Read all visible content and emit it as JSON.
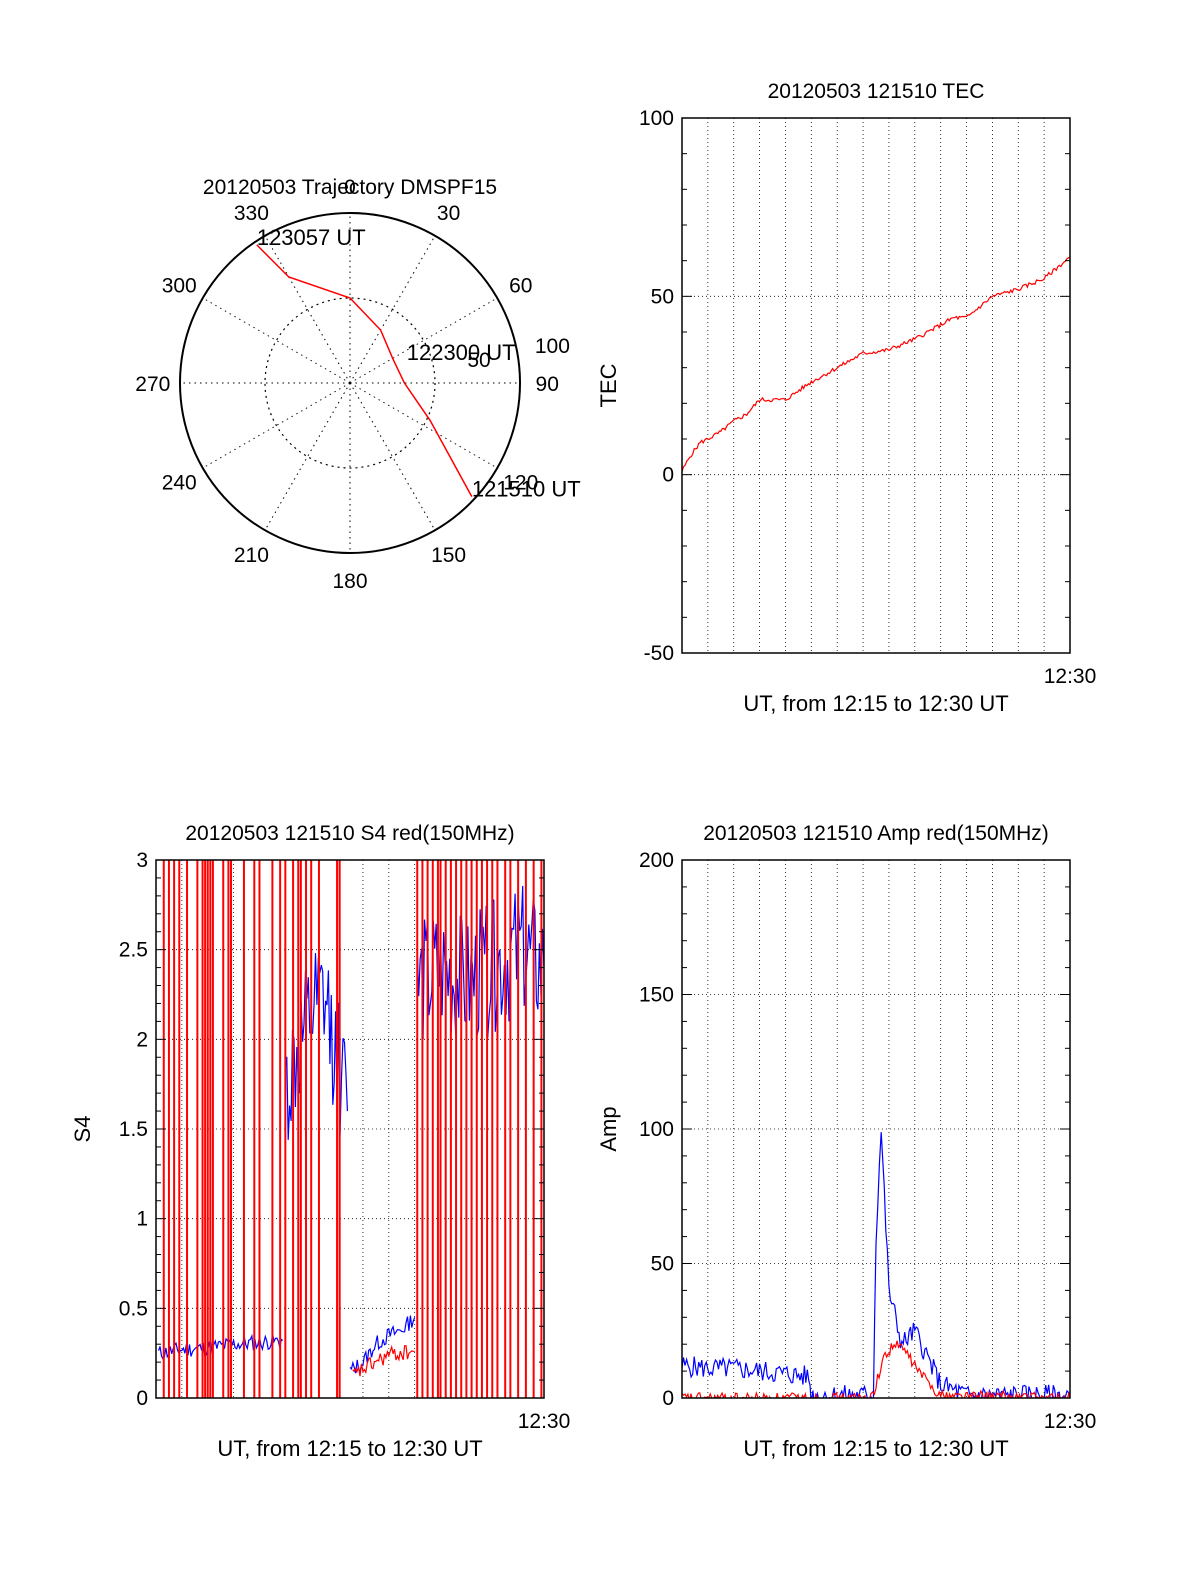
{
  "chart_data": [
    {
      "type": "polar",
      "title": "20120503 Trajectory DMSPF15",
      "azimuth_labels": [
        "0",
        "30",
        "60",
        "90",
        "120",
        "150",
        "180",
        "210",
        "240",
        "270",
        "300",
        "330"
      ],
      "radius_label": "50",
      "radius_outer_label": "100",
      "series": [
        {
          "color": "#ff0000",
          "points": [
            {
              "azimuth": 326,
              "radius": 98
            },
            {
              "azimuth": 330,
              "radius": 72
            },
            {
              "azimuth": 0,
              "radius": 50
            },
            {
              "azimuth": 30,
              "radius": 36
            },
            {
              "azimuth": 60,
              "radius": 29
            },
            {
              "azimuth": 90,
              "radius": 32
            },
            {
              "azimuth": 115,
              "radius": 52
            },
            {
              "azimuth": 133,
              "radius": 98
            }
          ]
        }
      ],
      "annotations": [
        {
          "text": "123057 UT",
          "azimuth": 326,
          "radius": 98
        },
        {
          "text": "122300 UT",
          "azimuth": 68,
          "radius": 36
        },
        {
          "text": "121510 UT",
          "azimuth": 133,
          "radius": 98
        }
      ]
    },
    {
      "type": "line",
      "title": "20120503 121510 TEC",
      "xlabel": "UT, from 12:15 to 12:30 UT",
      "ylabel": "TEC",
      "xlim": [
        0,
        15
      ],
      "ylim": [
        -50,
        100
      ],
      "yticks": [
        "-50",
        "0",
        "50",
        "100"
      ],
      "xtick_end_label": "12:30",
      "grid": true,
      "series": [
        {
          "color": "#ff0000",
          "x": [
            0,
            0.3,
            0.7,
            1.0,
            1.5,
            2.0,
            2.5,
            3.0,
            4.0,
            5.0,
            6.0,
            7.0,
            8.0,
            9.0,
            10.0,
            10.5,
            11.0,
            12.0,
            13.0,
            14.0,
            15.0
          ],
          "y": [
            1,
            5,
            9,
            10,
            12,
            15,
            17,
            21,
            21,
            26,
            30,
            34,
            35,
            38,
            42,
            44,
            44,
            50,
            52,
            55,
            61
          ]
        }
      ]
    },
    {
      "type": "line",
      "title": "20120503 121510 S4 red(150MHz)",
      "xlabel": "UT, from 12:15 to 12:30 UT",
      "ylabel": "S4",
      "xlim": [
        0,
        15
      ],
      "ylim": [
        0,
        3
      ],
      "yticks": [
        "0",
        "0.5",
        "1",
        "1.5",
        "2",
        "2.5",
        "3"
      ],
      "xtick_end_label": "12:30",
      "grid": true,
      "series": [
        {
          "color": "#0000ff",
          "segments": [
            {
              "x": [
                0.1,
                1.0,
                2.0,
                3.0,
                4.0,
                4.9
              ],
              "y": [
                0.25,
                0.27,
                0.28,
                0.3,
                0.31,
                0.32
              ]
            },
            {
              "x": [
                5.0,
                5.5,
                6.0,
                6.5,
                7.0,
                7.4
              ],
              "y": [
                1.7,
                1.9,
                2.1,
                2.2,
                1.9,
                1.6
              ]
            },
            {
              "x": [
                7.5,
                8.0,
                8.5,
                9.0,
                9.5,
                10.0
              ],
              "y": [
                0.15,
                0.2,
                0.3,
                0.35,
                0.38,
                0.45
              ]
            },
            {
              "x": [
                10.1,
                11.0,
                12.0,
                13.0,
                14.0,
                15.0
              ],
              "y": [
                2.3,
                2.4,
                2.3,
                2.4,
                2.5,
                2.4
              ]
            }
          ]
        },
        {
          "color": "#ff0000",
          "segments": [
            {
              "x": [
                7.6,
                8.0,
                8.5,
                9.0,
                9.5,
                10.0
              ],
              "y": [
                0.12,
                0.16,
                0.2,
                0.24,
                0.25,
                0.26
              ]
            }
          ],
          "spikes_x": [
            0.3,
            0.5,
            0.7,
            0.9,
            1.2,
            1.6,
            1.8,
            1.9,
            2.0,
            2.1,
            2.2,
            2.6,
            2.8,
            2.9,
            3.4,
            3.8,
            4.0,
            4.5,
            4.8,
            5.0,
            5.3,
            5.5,
            5.6,
            5.8,
            6.0,
            6.3,
            7.0,
            7.1,
            10.1,
            10.3,
            10.5,
            10.7,
            10.9,
            11.0,
            11.2,
            11.4,
            11.6,
            11.8,
            12.0,
            12.2,
            12.4,
            12.6,
            12.8,
            13.0,
            13.2,
            13.5,
            13.7,
            14.0,
            14.3,
            14.6,
            14.9
          ]
        }
      ]
    },
    {
      "type": "line",
      "title": "20120503 121510 Amp red(150MHz)",
      "xlabel": "UT, from 12:15 to 12:30 UT",
      "ylabel": "Amp",
      "xlim": [
        0,
        15
      ],
      "ylim": [
        0,
        200
      ],
      "yticks": [
        "0",
        "50",
        "100",
        "150",
        "200"
      ],
      "xtick_end_label": "12:30",
      "grid": true,
      "series": [
        {
          "color": "#0000ff",
          "x": [
            0,
            1,
            2,
            3,
            4,
            4.9,
            5.0,
            6.0,
            7.0,
            7.4,
            7.5,
            7.7,
            8.0,
            8.5,
            9.0,
            9.5,
            10.0,
            11,
            12,
            13,
            14,
            15
          ],
          "y": [
            12,
            11,
            11,
            10,
            9,
            8,
            1,
            1,
            1,
            2,
            60,
            100,
            40,
            20,
            25,
            15,
            5,
            1,
            1,
            1,
            1,
            1
          ]
        },
        {
          "color": "#ff0000",
          "x": [
            0,
            7.3,
            7.5,
            7.8,
            8.2,
            8.6,
            9.0,
            9.5,
            10.0,
            15
          ],
          "y": [
            0,
            0,
            5,
            15,
            20,
            18,
            12,
            6,
            1,
            0
          ]
        }
      ]
    }
  ]
}
